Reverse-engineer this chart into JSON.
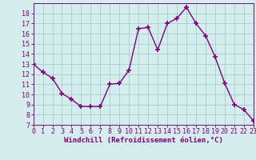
{
  "x": [
    0,
    1,
    2,
    3,
    4,
    5,
    6,
    7,
    8,
    9,
    10,
    11,
    12,
    13,
    14,
    15,
    16,
    17,
    18,
    19,
    20,
    21,
    22,
    23
  ],
  "y": [
    13,
    12.2,
    11.6,
    10.1,
    9.5,
    8.8,
    8.8,
    8.8,
    11.0,
    11.1,
    12.4,
    16.5,
    16.6,
    14.4,
    17.0,
    17.5,
    18.6,
    17.0,
    15.8,
    13.7,
    11.1,
    9.0,
    8.5,
    7.4
  ],
  "line_color": "#800080",
  "marker": "+",
  "marker_size": 5,
  "marker_linewidth": 1.2,
  "bg_color": "#d4eded",
  "grid_color": "#a8cccc",
  "xlabel": "Windchill (Refroidissement éolien,°C)",
  "xlim": [
    0,
    23
  ],
  "ylim": [
    7,
    19
  ],
  "yticks": [
    7,
    8,
    9,
    10,
    11,
    12,
    13,
    14,
    15,
    16,
    17,
    18
  ],
  "xticks": [
    0,
    1,
    2,
    3,
    4,
    5,
    6,
    7,
    8,
    9,
    10,
    11,
    12,
    13,
    14,
    15,
    16,
    17,
    18,
    19,
    20,
    21,
    22,
    23
  ],
  "xlabel_fontsize": 6.5,
  "tick_fontsize": 6,
  "line_width": 1.0
}
